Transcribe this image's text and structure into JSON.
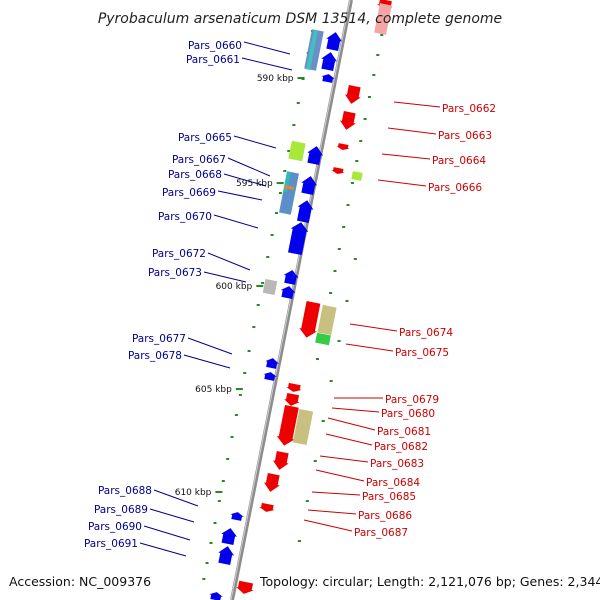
{
  "title": "Pyrobaculum arsenaticum DSM 13514, complete genome",
  "footer": {
    "accession": "Accession: NC_009376",
    "topology": "Topology: circular; Length: 2,121,076 bp; Genes: 2,344"
  },
  "colors": {
    "forward": "#0000ee",
    "reverse": "#ee0000",
    "label_forward": "#00008b",
    "label_reverse": "#cc0000",
    "backbone": "#888888",
    "tick": "#228b22"
  },
  "ticks": [
    "590 kbp",
    "595 kbp",
    "600 kbp",
    "605 kbp",
    "610 kbp"
  ],
  "genes_forward": [
    "Pars_0660",
    "Pars_0661",
    "Pars_0665",
    "Pars_0667",
    "Pars_0668",
    "Pars_0669",
    "Pars_0670",
    "Pars_0672",
    "Pars_0673",
    "Pars_0677",
    "Pars_0678",
    "Pars_0688",
    "Pars_0689",
    "Pars_0690",
    "Pars_0691"
  ],
  "genes_reverse": [
    "Pars_0662",
    "Pars_0663",
    "Pars_0664",
    "Pars_0666",
    "Pars_0674",
    "Pars_0675",
    "Pars_0679",
    "Pars_0680",
    "Pars_0681",
    "Pars_0682",
    "Pars_0683",
    "Pars_0684",
    "Pars_0685",
    "Pars_0686",
    "Pars_0687"
  ]
}
